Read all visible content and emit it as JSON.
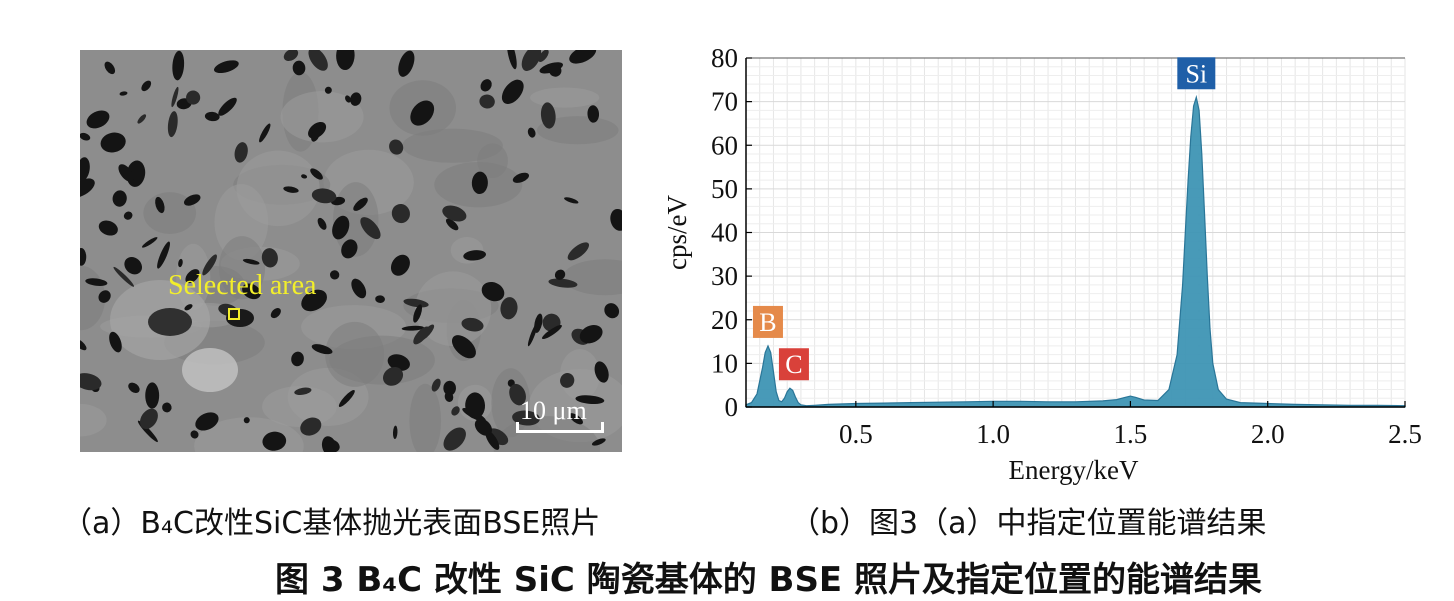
{
  "panel_a": {
    "selected_label": "Selected area",
    "scale_bar": "10 μm",
    "caption": "（a）B₄C改性SiC基体抛光表面BSE照片"
  },
  "panel_b": {
    "caption": "（b）图3（a）中指定位置能谱结果"
  },
  "figure_title": "图 3   B₄C 改性 SiC 陶瓷基体的 BSE 照片及指定位置的能谱结果",
  "chart_data": {
    "type": "area",
    "xlabel": "Energy/keV",
    "ylabel": "cps/eV",
    "xlim": [
      0.1,
      2.5
    ],
    "ylim": [
      0,
      80
    ],
    "xticks": [
      0.5,
      1.0,
      1.5,
      2.0,
      2.5
    ],
    "xtick_labels": [
      "0.5",
      "1.0",
      "1.5",
      "2.0",
      "2.5"
    ],
    "yticks": [
      0,
      10,
      20,
      30,
      40,
      50,
      60,
      70,
      80
    ],
    "grid": true,
    "fill_color": "#3f95b5",
    "line_color": "#1f6f93",
    "x": [
      0.1,
      0.12,
      0.14,
      0.16,
      0.17,
      0.18,
      0.19,
      0.2,
      0.21,
      0.22,
      0.23,
      0.24,
      0.25,
      0.26,
      0.27,
      0.28,
      0.29,
      0.3,
      0.32,
      0.35,
      0.4,
      0.5,
      0.6,
      0.7,
      0.8,
      0.9,
      1.0,
      1.1,
      1.2,
      1.3,
      1.4,
      1.45,
      1.48,
      1.5,
      1.52,
      1.55,
      1.6,
      1.64,
      1.67,
      1.69,
      1.7,
      1.71,
      1.72,
      1.73,
      1.74,
      1.75,
      1.76,
      1.77,
      1.78,
      1.79,
      1.8,
      1.82,
      1.85,
      1.9,
      2.0,
      2.1,
      2.2,
      2.3,
      2.4,
      2.5
    ],
    "y": [
      0.5,
      1,
      3,
      9,
      12.5,
      14,
      12.5,
      8,
      3.5,
      1.5,
      1.2,
      2,
      3.5,
      4.3,
      3.8,
      2.3,
      1,
      0.5,
      0.3,
      0.4,
      0.6,
      0.8,
      0.9,
      1,
      1.1,
      1.2,
      1.3,
      1.3,
      1.2,
      1.2,
      1.4,
      1.7,
      2.2,
      2.5,
      2.2,
      1.6,
      1.5,
      4,
      12,
      28,
      40,
      52,
      62,
      69,
      71,
      68,
      58,
      44,
      30,
      18,
      10,
      4,
      1.8,
      1,
      0.8,
      0.6,
      0.5,
      0.4,
      0.4,
      0.3
    ],
    "peak_labels": [
      {
        "text": "Si",
        "x": 1.74,
        "y": 71,
        "color": "#1f5fa8"
      },
      {
        "text": "B",
        "x": 0.18,
        "y": 14,
        "color": "#e58a4a"
      },
      {
        "text": "C",
        "x": 0.26,
        "y": 4.3,
        "color": "#d9413a"
      }
    ]
  }
}
